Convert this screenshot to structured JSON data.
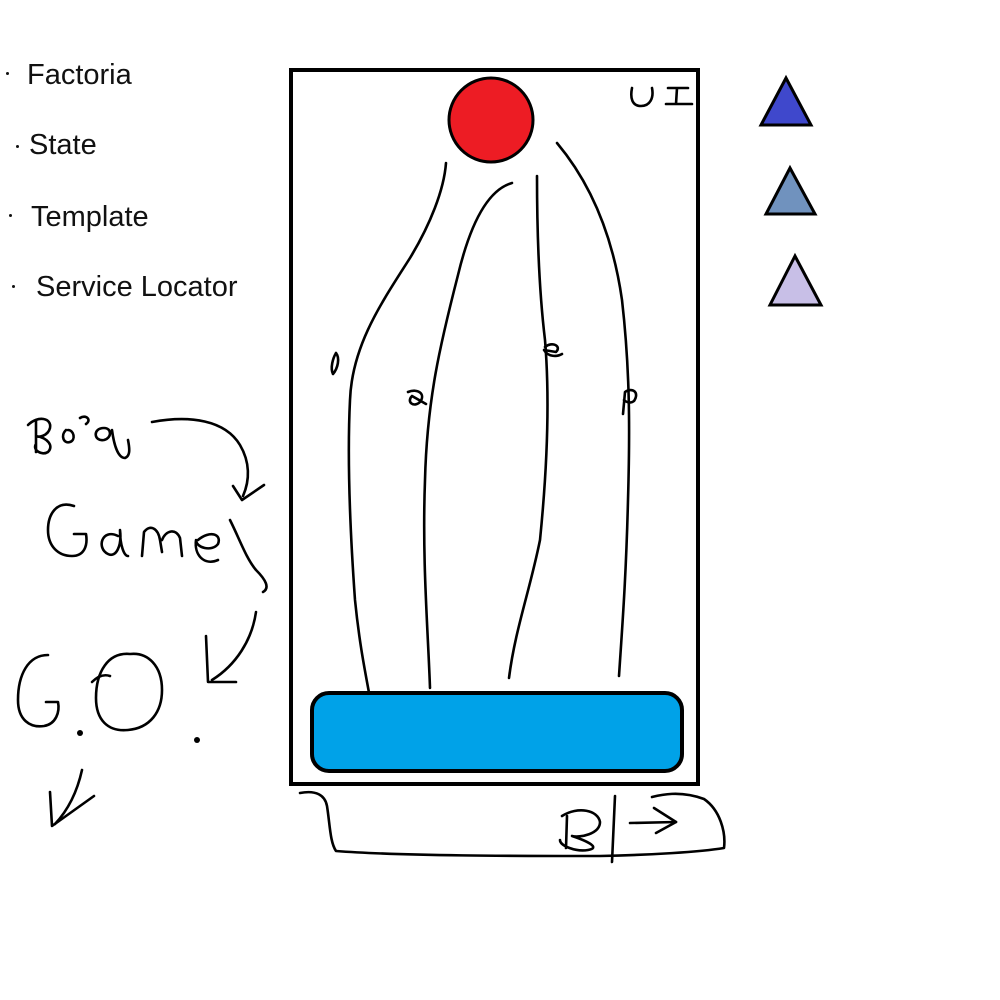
{
  "bullets": [
    {
      "label": "Factoria"
    },
    {
      "label": "State"
    },
    {
      "label": "Template"
    },
    {
      "label": "Service Locator"
    }
  ],
  "phone": {
    "ui_label": "UI",
    "top_circle_color": "#ed1c24",
    "bottom_bar_color": "#00a2e8",
    "branch_labels": [
      "l",
      "a",
      "e",
      "p"
    ]
  },
  "legend_triangles": [
    {
      "color": "#3f48cc"
    },
    {
      "color": "#7092be"
    },
    {
      "color": "#c8bfe7"
    }
  ],
  "handwriting": {
    "top_note": "Bog",
    "main_word": "Game",
    "abbrev": "G.O.",
    "bracket_note": "B"
  },
  "icons": [
    "curved-arrow-icon",
    "down-left-arrow-icon",
    "right-arrow-icon"
  ]
}
